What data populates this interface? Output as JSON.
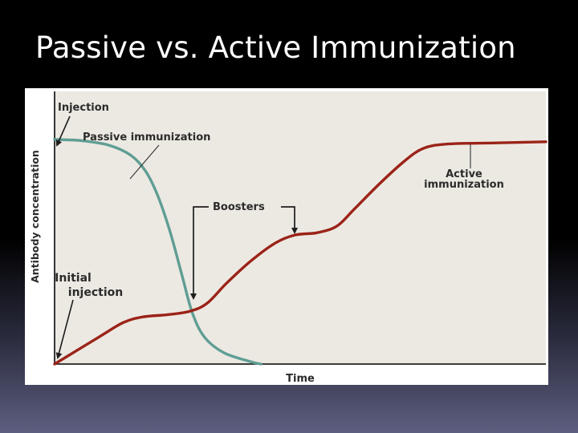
{
  "slide": {
    "title": "Passive vs. Active Immunization"
  },
  "chart_data": {
    "type": "line",
    "title": "",
    "xlabel": "Time",
    "ylabel": "Antibody concentration",
    "axis_ticks": false,
    "grid": false,
    "legend": "none",
    "background_color": "#ece9e2",
    "xlim": [
      0,
      10
    ],
    "ylim": [
      0,
      10
    ],
    "series": [
      {
        "name": "Passive immunization",
        "color": "#5f9e94",
        "points": [
          [
            0,
            10
          ],
          [
            0.55,
            9.95
          ],
          [
            1.1,
            9.75
          ],
          [
            1.55,
            9.3
          ],
          [
            1.85,
            8.6
          ],
          [
            2.1,
            7.5
          ],
          [
            2.35,
            5.9
          ],
          [
            2.6,
            3.9
          ],
          [
            2.8,
            2.3
          ],
          [
            3.05,
            1.2
          ],
          [
            3.45,
            0.5
          ],
          [
            4.0,
            0.1
          ],
          [
            4.2,
            0
          ]
        ]
      },
      {
        "name": "Active immunization",
        "color": "#9b2318",
        "points": [
          [
            0,
            0
          ],
          [
            0.9,
            1.2
          ],
          [
            1.4,
            1.85
          ],
          [
            1.8,
            2.1
          ],
          [
            2.3,
            2.2
          ],
          [
            2.75,
            2.35
          ],
          [
            3.1,
            2.7
          ],
          [
            3.5,
            3.6
          ],
          [
            4.0,
            4.6
          ],
          [
            4.5,
            5.4
          ],
          [
            4.9,
            5.75
          ],
          [
            5.35,
            5.85
          ],
          [
            5.75,
            6.15
          ],
          [
            6.1,
            6.9
          ],
          [
            6.6,
            8.0
          ],
          [
            7.1,
            9.0
          ],
          [
            7.5,
            9.6
          ],
          [
            8.0,
            9.8
          ],
          [
            9.0,
            9.85
          ],
          [
            10,
            9.9
          ]
        ]
      }
    ],
    "annotations": {
      "injection": "Injection",
      "passive": "Passive immunization",
      "boosters": "Boosters",
      "active_line1": "Active",
      "active_line2": "immunization",
      "initial_line1": "Initial",
      "initial_line2": "injection"
    }
  }
}
